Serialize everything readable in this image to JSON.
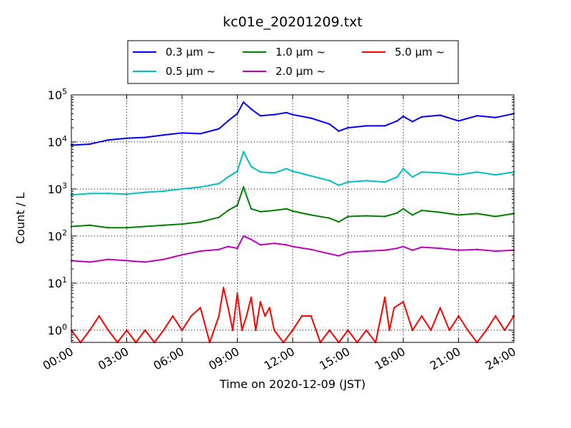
{
  "chart_data": {
    "type": "line",
    "title": "kc01e_20201209.txt",
    "xlabel": "Time on 2020-12-09 (JST)",
    "ylabel": "Count / L",
    "yscale": "log",
    "ylim": [
      0.55,
      100000
    ],
    "xlim": [
      "00:00",
      "24:00"
    ],
    "x_ticks": [
      "00:00",
      "03:00",
      "06:00",
      "09:00",
      "12:00",
      "15:00",
      "18:00",
      "21:00",
      "24:00"
    ],
    "y_ticks": [
      {
        "value": 1,
        "base": "10",
        "exp": "0"
      },
      {
        "value": 10,
        "base": "10",
        "exp": "1"
      },
      {
        "value": 100,
        "base": "10",
        "exp": "2"
      },
      {
        "value": 1000,
        "base": "10",
        "exp": "3"
      },
      {
        "value": 10000,
        "base": "10",
        "exp": "4"
      },
      {
        "value": 100000,
        "base": "10",
        "exp": "5"
      }
    ],
    "grid": true,
    "legend_position": "top-center",
    "series": [
      {
        "name": "0.3 μm ~",
        "color": "#0000ff",
        "x": [
          "00:00",
          "01:00",
          "02:00",
          "03:00",
          "04:00",
          "05:00",
          "06:00",
          "07:00",
          "08:00",
          "08:30",
          "09:00",
          "09:20",
          "09:45",
          "10:15",
          "11:00",
          "11:40",
          "12:00",
          "13:00",
          "14:00",
          "14:30",
          "15:00",
          "16:00",
          "17:00",
          "17:40",
          "18:00",
          "18:30",
          "19:00",
          "20:00",
          "21:00",
          "22:00",
          "23:00",
          "24:00"
        ],
        "values": [
          8500,
          9000,
          11000,
          12000,
          12500,
          14000,
          15500,
          15000,
          19000,
          28000,
          40000,
          70000,
          50000,
          36000,
          38000,
          42000,
          38000,
          32000,
          24000,
          17000,
          20000,
          22000,
          22000,
          28000,
          35000,
          27000,
          34000,
          37000,
          28000,
          36000,
          33000,
          40000
        ]
      },
      {
        "name": "0.5 μm ~",
        "color": "#00bfbf",
        "x": [
          "00:00",
          "01:00",
          "02:00",
          "03:00",
          "04:00",
          "05:00",
          "06:00",
          "07:00",
          "08:00",
          "08:30",
          "09:00",
          "09:20",
          "09:45",
          "10:15",
          "11:00",
          "11:40",
          "12:00",
          "13:00",
          "14:00",
          "14:30",
          "15:00",
          "16:00",
          "17:00",
          "17:40",
          "18:00",
          "18:30",
          "19:00",
          "20:00",
          "21:00",
          "22:00",
          "23:00",
          "24:00"
        ],
        "values": [
          750,
          800,
          800,
          780,
          850,
          900,
          1000,
          1100,
          1300,
          1800,
          2400,
          6200,
          3000,
          2300,
          2200,
          2700,
          2400,
          1900,
          1500,
          1200,
          1400,
          1500,
          1400,
          1800,
          2700,
          1800,
          2300,
          2200,
          2000,
          2300,
          2000,
          2300
        ]
      },
      {
        "name": "1.0 μm ~",
        "color": "#008000",
        "x": [
          "00:00",
          "01:00",
          "02:00",
          "03:00",
          "04:00",
          "05:00",
          "06:00",
          "07:00",
          "08:00",
          "08:30",
          "09:00",
          "09:20",
          "09:45",
          "10:15",
          "11:00",
          "11:40",
          "12:00",
          "13:00",
          "14:00",
          "14:30",
          "15:00",
          "16:00",
          "17:00",
          "17:40",
          "18:00",
          "18:30",
          "19:00",
          "20:00",
          "21:00",
          "22:00",
          "23:00",
          "24:00"
        ],
        "values": [
          160,
          170,
          150,
          150,
          160,
          170,
          180,
          200,
          250,
          350,
          450,
          1100,
          380,
          330,
          350,
          380,
          340,
          280,
          240,
          200,
          260,
          270,
          260,
          310,
          380,
          280,
          350,
          320,
          280,
          300,
          260,
          300
        ]
      },
      {
        "name": "2.0 μm ~",
        "color": "#bf00bf",
        "x": [
          "00:00",
          "01:00",
          "02:00",
          "03:00",
          "04:00",
          "05:00",
          "06:00",
          "07:00",
          "08:00",
          "08:30",
          "09:00",
          "09:20",
          "09:45",
          "10:15",
          "11:00",
          "11:40",
          "12:00",
          "13:00",
          "14:00",
          "14:30",
          "15:00",
          "16:00",
          "17:00",
          "17:40",
          "18:00",
          "18:30",
          "19:00",
          "20:00",
          "21:00",
          "22:00",
          "23:00",
          "24:00"
        ],
        "values": [
          30,
          28,
          32,
          30,
          28,
          32,
          40,
          48,
          52,
          60,
          55,
          100,
          85,
          65,
          70,
          65,
          60,
          52,
          42,
          38,
          45,
          48,
          50,
          55,
          60,
          50,
          58,
          55,
          50,
          52,
          48,
          50
        ]
      },
      {
        "name": "5.0 μm ~",
        "color": "#ff0000",
        "x": [
          "00:00",
          "00:30",
          "01:00",
          "01:30",
          "02:00",
          "02:30",
          "03:00",
          "03:30",
          "04:00",
          "04:30",
          "05:00",
          "05:30",
          "06:00",
          "06:30",
          "07:00",
          "07:30",
          "08:00",
          "08:15",
          "08:30",
          "08:45",
          "09:00",
          "09:15",
          "09:30",
          "09:45",
          "10:00",
          "10:15",
          "10:30",
          "10:45",
          "11:00",
          "11:30",
          "12:00",
          "12:30",
          "13:00",
          "13:30",
          "14:00",
          "14:30",
          "15:00",
          "15:30",
          "16:00",
          "16:30",
          "17:00",
          "17:15",
          "17:30",
          "18:00",
          "18:30",
          "19:00",
          "19:30",
          "20:00",
          "20:30",
          "21:00",
          "21:30",
          "22:00",
          "22:30",
          "23:00",
          "23:30",
          "24:00"
        ],
        "values": [
          1,
          0,
          1,
          2,
          1,
          0,
          1,
          0,
          1,
          0,
          1,
          2,
          1,
          2,
          3,
          0,
          2,
          8,
          3,
          1,
          6,
          1,
          2,
          5,
          1,
          4,
          2,
          3,
          1,
          0,
          1,
          2,
          2,
          0,
          1,
          0,
          1,
          0,
          1,
          0,
          5,
          1,
          3,
          4,
          1,
          2,
          1,
          3,
          1,
          2,
          1,
          0,
          1,
          2,
          1,
          2
        ]
      }
    ]
  }
}
